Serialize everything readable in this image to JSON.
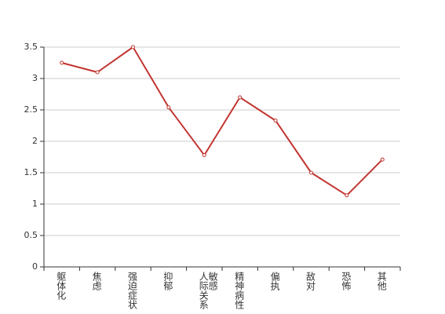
{
  "chart_data": {
    "type": "line",
    "categories": [
      "躯体化",
      "焦虑",
      "强迫症状",
      "抑郁",
      "人际关系敏感",
      "精神病性",
      "偏执",
      "敌对",
      "恐怖",
      "其他"
    ],
    "values": [
      3.25,
      3.1,
      3.5,
      2.54,
      1.78,
      2.7,
      2.33,
      1.5,
      1.14,
      1.71
    ],
    "color": "#c23531",
    "ylim": [
      0,
      3.5
    ],
    "yticks": [
      0,
      0.5,
      1,
      1.5,
      2,
      2.5,
      3,
      3.5
    ],
    "grid": true
  }
}
